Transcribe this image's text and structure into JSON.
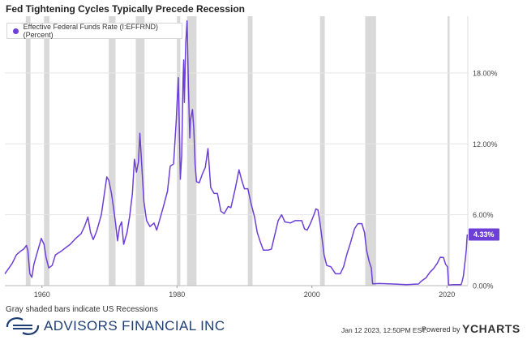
{
  "header": {
    "title": "Fed Tightening Cycles Typically Precede Recession"
  },
  "footer": {
    "note": "Gray shaded bars indicate US Recessions",
    "brand": "ADVISORS FINANCIAL INC",
    "timestamp": "Jan 12 2023, 12:50PM EST.",
    "powered": "Powered by",
    "provider": "YCHARTS"
  },
  "chart_data": {
    "type": "line",
    "title": "Fed Tightening Cycles Typically Precede Recession",
    "xlabel": "",
    "ylabel": "",
    "xlim": [
      1954.5,
      2023.1
    ],
    "ylim": [
      0,
      22.8
    ],
    "x_ticks": [
      "1960",
      "1980",
      "2000",
      "2020"
    ],
    "y_ticks": [
      "0.00%",
      "6.00%",
      "12.00%",
      "18.00%"
    ],
    "grid": "horizontal",
    "legend_position": "top-left",
    "series": [
      {
        "name": "Effective Federal Funds Rate (I:EFFRND) (Percent)",
        "color": "#6d3fd6",
        "last_value_label": "4.33%",
        "points": [
          [
            1954.5,
            1.0
          ],
          [
            1955.0,
            1.4
          ],
          [
            1955.6,
            1.9
          ],
          [
            1956.2,
            2.6
          ],
          [
            1956.8,
            2.9
          ],
          [
            1957.3,
            3.1
          ],
          [
            1957.7,
            3.4
          ],
          [
            1957.9,
            3.0
          ],
          [
            1958.2,
            1.0
          ],
          [
            1958.5,
            0.7
          ],
          [
            1958.8,
            1.8
          ],
          [
            1959.2,
            2.6
          ],
          [
            1959.7,
            3.6
          ],
          [
            1959.9,
            4.0
          ],
          [
            1960.3,
            3.5
          ],
          [
            1960.6,
            2.4
          ],
          [
            1961.0,
            1.5
          ],
          [
            1961.5,
            1.7
          ],
          [
            1962.0,
            2.6
          ],
          [
            1962.8,
            2.9
          ],
          [
            1963.5,
            3.2
          ],
          [
            1964.2,
            3.5
          ],
          [
            1965.0,
            4.0
          ],
          [
            1965.8,
            4.4
          ],
          [
            1966.3,
            5.0
          ],
          [
            1966.8,
            5.8
          ],
          [
            1967.2,
            4.5
          ],
          [
            1967.6,
            3.9
          ],
          [
            1968.1,
            4.6
          ],
          [
            1968.8,
            6.0
          ],
          [
            1969.3,
            8.0
          ],
          [
            1969.6,
            9.2
          ],
          [
            1969.9,
            8.9
          ],
          [
            1970.3,
            7.8
          ],
          [
            1970.6,
            6.6
          ],
          [
            1970.9,
            5.3
          ],
          [
            1971.2,
            3.8
          ],
          [
            1971.5,
            5.0
          ],
          [
            1971.8,
            5.4
          ],
          [
            1972.1,
            3.5
          ],
          [
            1972.6,
            4.5
          ],
          [
            1973.0,
            5.9
          ],
          [
            1973.4,
            7.8
          ],
          [
            1973.7,
            10.7
          ],
          [
            1974.0,
            9.6
          ],
          [
            1974.3,
            10.5
          ],
          [
            1974.5,
            12.9
          ],
          [
            1974.8,
            10.0
          ],
          [
            1975.1,
            7.1
          ],
          [
            1975.5,
            5.5
          ],
          [
            1976.0,
            5.0
          ],
          [
            1976.6,
            5.3
          ],
          [
            1977.0,
            4.7
          ],
          [
            1977.6,
            5.9
          ],
          [
            1978.0,
            6.7
          ],
          [
            1978.6,
            8.0
          ],
          [
            1979.0,
            10.1
          ],
          [
            1979.5,
            10.3
          ],
          [
            1979.9,
            14.0
          ],
          [
            1980.2,
            17.6
          ],
          [
            1980.4,
            12.0
          ],
          [
            1980.5,
            9.0
          ],
          [
            1980.7,
            11.0
          ],
          [
            1980.9,
            17.2
          ],
          [
            1981.0,
            19.1
          ],
          [
            1981.1,
            15.5
          ],
          [
            1981.3,
            20.5
          ],
          [
            1981.5,
            22.4
          ],
          [
            1981.7,
            16.8
          ],
          [
            1981.9,
            12.5
          ],
          [
            1982.0,
            14.0
          ],
          [
            1982.3,
            14.9
          ],
          [
            1982.5,
            13.2
          ],
          [
            1982.7,
            10.2
          ],
          [
            1982.9,
            8.8
          ],
          [
            1983.3,
            8.7
          ],
          [
            1983.8,
            9.5
          ],
          [
            1984.2,
            10.0
          ],
          [
            1984.6,
            11.6
          ],
          [
            1985.0,
            8.3
          ],
          [
            1985.5,
            7.8
          ],
          [
            1986.0,
            7.8
          ],
          [
            1986.5,
            6.3
          ],
          [
            1987.0,
            6.1
          ],
          [
            1987.6,
            6.7
          ],
          [
            1988.0,
            6.6
          ],
          [
            1988.6,
            8.1
          ],
          [
            1989.2,
            9.8
          ],
          [
            1989.6,
            8.9
          ],
          [
            1990.0,
            8.2
          ],
          [
            1990.5,
            8.2
          ],
          [
            1991.0,
            6.9
          ],
          [
            1991.5,
            5.8
          ],
          [
            1991.9,
            4.5
          ],
          [
            1992.3,
            3.8
          ],
          [
            1992.8,
            3.0
          ],
          [
            1993.5,
            3.0
          ],
          [
            1994.0,
            3.1
          ],
          [
            1994.5,
            4.3
          ],
          [
            1995.0,
            5.5
          ],
          [
            1995.5,
            6.0
          ],
          [
            1996.0,
            5.4
          ],
          [
            1996.8,
            5.3
          ],
          [
            1997.5,
            5.5
          ],
          [
            1998.5,
            5.5
          ],
          [
            1998.9,
            4.8
          ],
          [
            1999.3,
            4.7
          ],
          [
            1999.8,
            5.3
          ],
          [
            2000.3,
            6.0
          ],
          [
            2000.6,
            6.5
          ],
          [
            2000.9,
            6.4
          ],
          [
            2001.2,
            5.3
          ],
          [
            2001.5,
            4.0
          ],
          [
            2001.8,
            2.6
          ],
          [
            2002.2,
            1.7
          ],
          [
            2002.8,
            1.6
          ],
          [
            2003.5,
            1.0
          ],
          [
            2004.2,
            1.0
          ],
          [
            2004.7,
            1.6
          ],
          [
            2005.2,
            2.7
          ],
          [
            2005.7,
            3.6
          ],
          [
            2006.3,
            4.8
          ],
          [
            2006.8,
            5.25
          ],
          [
            2007.4,
            5.25
          ],
          [
            2007.8,
            4.5
          ],
          [
            2008.1,
            3.0
          ],
          [
            2008.5,
            2.0
          ],
          [
            2008.8,
            1.5
          ],
          [
            2009.0,
            0.15
          ],
          [
            2010.0,
            0.18
          ],
          [
            2012.0,
            0.14
          ],
          [
            2014.0,
            0.09
          ],
          [
            2015.8,
            0.14
          ],
          [
            2016.2,
            0.38
          ],
          [
            2016.9,
            0.66
          ],
          [
            2017.5,
            1.15
          ],
          [
            2018.0,
            1.42
          ],
          [
            2018.6,
            1.91
          ],
          [
            2019.0,
            2.4
          ],
          [
            2019.5,
            2.38
          ],
          [
            2019.8,
            1.83
          ],
          [
            2020.1,
            1.58
          ],
          [
            2020.25,
            0.05
          ],
          [
            2021.0,
            0.08
          ],
          [
            2022.1,
            0.08
          ],
          [
            2022.25,
            0.33
          ],
          [
            2022.45,
            0.83
          ],
          [
            2022.6,
            1.58
          ],
          [
            2022.75,
            2.33
          ],
          [
            2022.88,
            3.08
          ],
          [
            2022.95,
            3.83
          ],
          [
            2023.03,
            4.33
          ]
        ]
      }
    ],
    "recessions": [
      [
        1957.6,
        1958.3
      ],
      [
        1960.3,
        1961.1
      ],
      [
        1969.9,
        1970.9
      ],
      [
        1973.9,
        1975.2
      ],
      [
        1980.0,
        1980.5
      ],
      [
        1981.5,
        1982.9
      ],
      [
        1990.5,
        1991.2
      ],
      [
        2001.2,
        2001.9
      ],
      [
        2007.9,
        2009.5
      ],
      [
        2020.1,
        2020.4
      ]
    ]
  }
}
